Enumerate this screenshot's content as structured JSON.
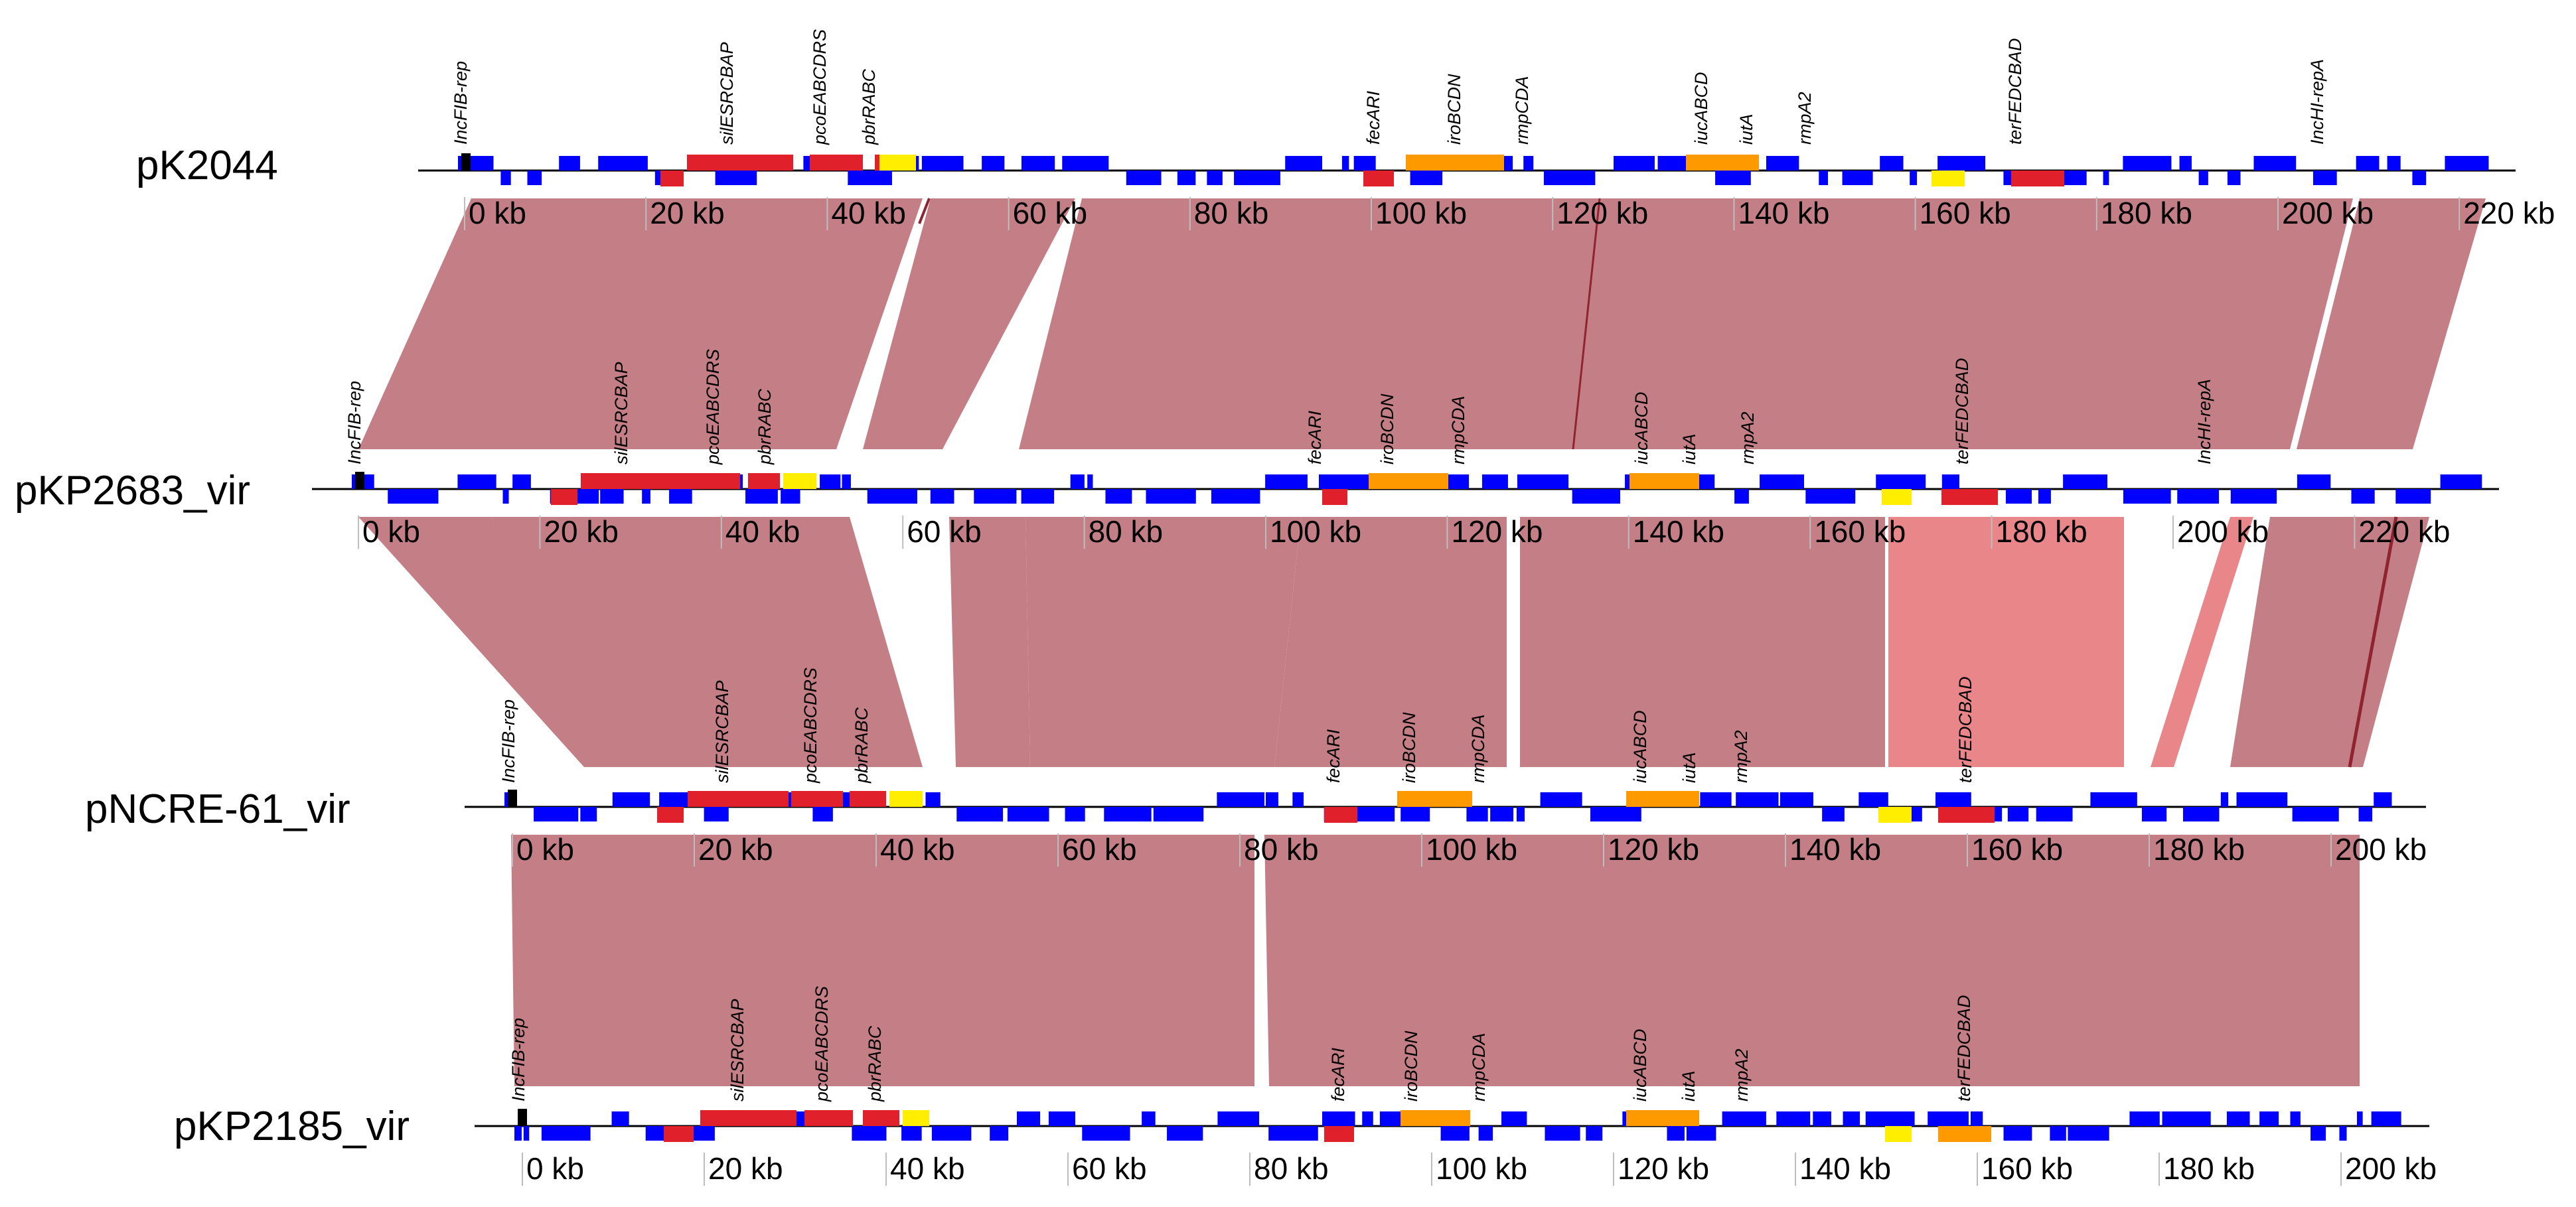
{
  "colors": {
    "background": "#ffffff",
    "forward_gene": "#0000ff",
    "reverse_gene": "#0000ff",
    "resistance_cluster": "#e0202a",
    "virulence_cluster": "#ff9900",
    "mobile_element": "#ffee00",
    "replicon": "#000000",
    "homology_block": "#c47f86",
    "homology_block_light": "#e8868a",
    "homology_inverted": "#8f2430",
    "axis": "#000000"
  },
  "tick_unit": "kb",
  "tracks": [
    {
      "id": "pK2044",
      "name": "pK2044",
      "ticks": [
        "0 kb",
        "20 kb",
        "40 kb",
        "60 kb",
        "80 kb",
        "100 kb",
        "120 kb",
        "140 kb",
        "160 kb",
        "180 kb",
        "200 kb",
        "220 kb"
      ],
      "gene_labels": [
        "IncFIB-rep",
        "silESRCBAP",
        "pcoEABCDRS",
        "pbrRABC",
        "fecARI",
        "iroBCDN",
        "rmpCDA",
        "iucABCD",
        "iutA",
        "rmpA2",
        "terFEDCBAD",
        "IncHI-repA"
      ]
    },
    {
      "id": "pKP2683_vir",
      "name": "pKP2683_vir",
      "ticks": [
        "0 kb",
        "20 kb",
        "40 kb",
        "60 kb",
        "80 kb",
        "100 kb",
        "120 kb",
        "140 kb",
        "160 kb",
        "180 kb",
        "200 kb",
        "220 kb"
      ],
      "gene_labels": [
        "IncFIB-rep",
        "silESRCBAP",
        "pcoEABCDRS",
        "pbrRABC",
        "fecARI",
        "iroBCDN",
        "rmpCDA",
        "iucABCD",
        "iutA",
        "rmpA2",
        "terFEDCBAD",
        "IncHI-repA"
      ]
    },
    {
      "id": "pNCRE-61_vir",
      "name": "pNCRE-61_vir",
      "ticks": [
        "0 kb",
        "20 kb",
        "40 kb",
        "60 kb",
        "80 kb",
        "100 kb",
        "120 kb",
        "140 kb",
        "160 kb",
        "180 kb",
        "200 kb"
      ],
      "gene_labels": [
        "IncFIB-rep",
        "silESRCBAP",
        "pcoEABCDRS",
        "pbrRABC",
        "fecARI",
        "iroBCDN",
        "rmpCDA",
        "iucABCD",
        "iutA",
        "rmpA2",
        "terFEDCBAD"
      ]
    },
    {
      "id": "pKP2185_vir",
      "name": "pKP2185_vir",
      "ticks": [
        "0 kb",
        "20 kb",
        "40 kb",
        "60 kb",
        "80 kb",
        "100 kb",
        "120 kb",
        "140 kb",
        "160 kb",
        "180 kb",
        "200 kb"
      ],
      "gene_labels": [
        "IncFIB-rep",
        "silESRCBAP",
        "pcoEABCDRS",
        "pbrRABC",
        "fecARI",
        "iroBCDN",
        "rmpCDA",
        "iucABCD",
        "iutA",
        "rmpA2",
        "terFEDCBAD"
      ]
    }
  ]
}
